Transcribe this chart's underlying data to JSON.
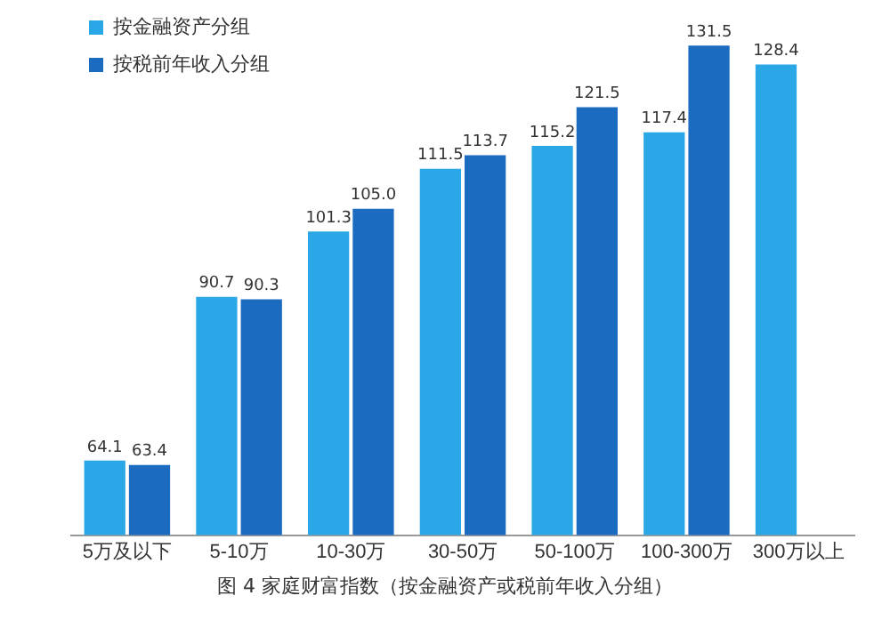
{
  "chart_data": {
    "type": "bar",
    "categories": [
      "5万及以下",
      "5-10万",
      "10-30万",
      "30-50万",
      "50-100万",
      "100-300万",
      "300万以上"
    ],
    "series": [
      {
        "name": "按金融资产分组",
        "color": "#2aa7e6",
        "values": [
          64.1,
          90.7,
          101.3,
          111.5,
          115.2,
          117.4,
          128.4
        ],
        "value_labels": [
          "64.1",
          "90.7",
          "101.3",
          "111.5",
          "115.2",
          "117.4",
          "128.4"
        ]
      },
      {
        "name": "按税前年收入分组",
        "color": "#1b6cc0",
        "values": [
          63.4,
          90.3,
          105.0,
          113.7,
          121.5,
          131.5,
          null
        ],
        "value_labels": [
          "63.4",
          "90.3",
          "105.0",
          "113.7",
          "121.5",
          "131.5",
          null
        ]
      }
    ],
    "ylim": [
      52,
      136
    ],
    "tick_labels": "x",
    "grid": false,
    "legend": "top left",
    "annotations": [
      "图 4 家庭财富指数（按金融资产或税前年收入分组）"
    ]
  }
}
